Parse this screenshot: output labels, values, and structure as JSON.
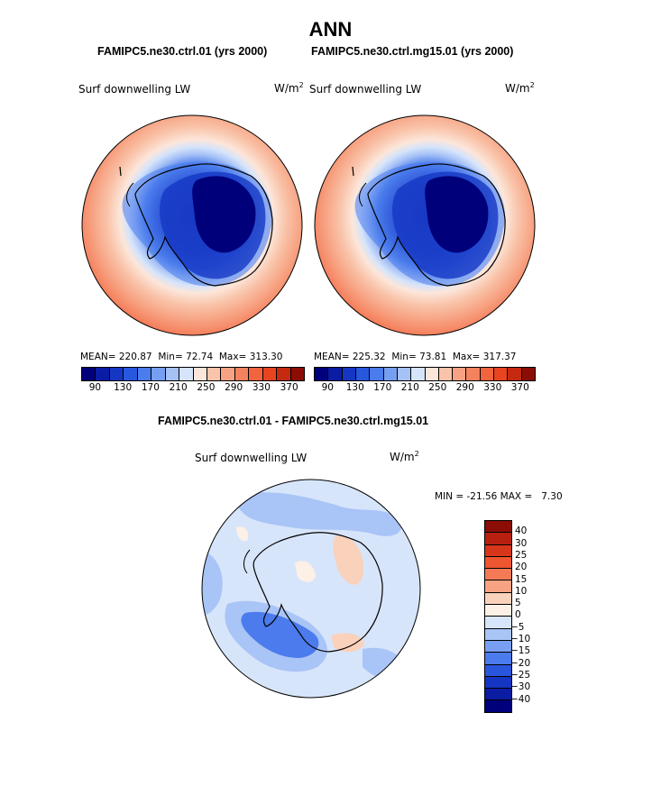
{
  "page_title": "ANN",
  "chart_data": [
    {
      "type": "heatmap",
      "projection": "south-polar-stereographic",
      "case_title": "FAMIPC5.ne30.ctrl.01 (yrs 2000)",
      "variable": "Surf downwelling LW",
      "units_base": "W/m",
      "units_exp": "2",
      "stats": {
        "mean_label": "MEAN=",
        "mean": "220.87",
        "min_label": "Min=",
        "min": "72.74",
        "max_label": "Max=",
        "max": "313.30"
      },
      "colorbar": {
        "levels": [
          90,
          110,
          130,
          150,
          170,
          190,
          210,
          230,
          250,
          270,
          290,
          310,
          330,
          350,
          370
        ],
        "tick_labels": [
          "90",
          "130",
          "170",
          "210",
          "250",
          "290",
          "330",
          "370"
        ]
      }
    },
    {
      "type": "heatmap",
      "projection": "south-polar-stereographic",
      "case_title": "FAMIPC5.ne30.ctrl.mg15.01 (yrs 2000)",
      "variable": "Surf downwelling LW",
      "units_base": "W/m",
      "units_exp": "2",
      "stats": {
        "mean_label": "MEAN=",
        "mean": "225.32",
        "min_label": "Min=",
        "min": "73.81",
        "max_label": "Max=",
        "max": "317.37"
      },
      "colorbar": {
        "levels": [
          90,
          110,
          130,
          150,
          170,
          190,
          210,
          230,
          250,
          270,
          290,
          310,
          330,
          350,
          370
        ],
        "tick_labels": [
          "90",
          "130",
          "170",
          "210",
          "250",
          "290",
          "330",
          "370"
        ]
      }
    },
    {
      "type": "heatmap",
      "projection": "south-polar-stereographic",
      "case_title": "FAMIPC5.ne30.ctrl.01 - FAMIPC5.ne30.ctrl.mg15.01",
      "variable": "Surf downwelling LW",
      "units_base": "W/m",
      "units_exp": "2",
      "minmax_text": "MIN = -21.56 MAX =   7.30",
      "colorbar": {
        "levels": [
          -40,
          -30,
          -25,
          -20,
          -15,
          -10,
          -5,
          0,
          5,
          10,
          15,
          20,
          25,
          30,
          40
        ],
        "tick_labels": [
          "40",
          "30",
          "25",
          "20",
          "15",
          "10",
          "5",
          "0",
          "−5",
          "−10",
          "−15",
          "−20",
          "−25",
          "−30",
          "−40"
        ]
      }
    }
  ],
  "colors": {
    "abs_palette": [
      "#00007a",
      "#0a1ba4",
      "#1537c4",
      "#2757dd",
      "#4a7cec",
      "#769ff2",
      "#a6c1f6",
      "#d5e4fb",
      "#fce6da",
      "#f9c4aa",
      "#f7a383",
      "#f5825f",
      "#f2643d",
      "#e8441f",
      "#c52a10",
      "#8b0d05"
    ],
    "diff_palette": [
      "#8b0d05",
      "#b72010",
      "#d8361a",
      "#ee5531",
      "#f47a55",
      "#f7a383",
      "#fad1bb",
      "#fdf0e6",
      "#d7e5fb",
      "#a9c4f6",
      "#789ff1",
      "#4b7bec",
      "#2956dd",
      "#1535c2",
      "#0b1ca2",
      "#00007a"
    ]
  }
}
